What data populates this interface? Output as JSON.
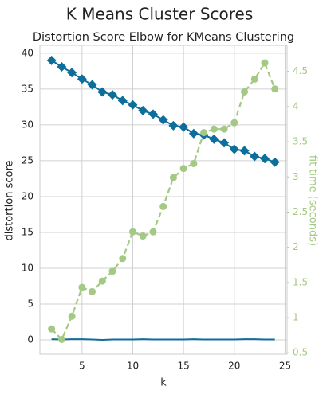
{
  "chart_data": {
    "type": "line",
    "title": "K Means Cluster Scores",
    "subtitle": "Distortion Score Elbow for KMeans Clustering",
    "x_label": "k",
    "y_label": "distortion score",
    "y2_label": "fit time (seconds)",
    "x": [
      2,
      3,
      4,
      5,
      6,
      7,
      8,
      9,
      10,
      11,
      12,
      13,
      14,
      15,
      16,
      17,
      18,
      19,
      20,
      21,
      22,
      23,
      24
    ],
    "series": [
      {
        "color": "#0e6e9b",
        "marker": "diamond",
        "linestyle": "solid",
        "values": [
          39.0,
          38.1,
          37.3,
          36.4,
          35.6,
          34.6,
          34.2,
          33.4,
          32.8,
          32.0,
          31.5,
          30.7,
          29.9,
          29.7,
          28.8,
          28.6,
          28.0,
          27.5,
          26.6,
          26.4,
          25.6,
          25.3,
          24.8
        ]
      },
      {
        "color": "#0e6e9b",
        "marker": "none",
        "linestyle": "solid",
        "values": [
          0.1,
          0.05,
          0.1,
          0.1,
          0.05,
          0.0,
          0.05,
          0.05,
          0.05,
          0.1,
          0.05,
          0.05,
          0.05,
          0.05,
          0.1,
          0.05,
          0.05,
          0.05,
          0.05,
          0.1,
          0.1,
          0.05,
          0.05
        ]
      },
      {
        "color": "#a3c984",
        "marker": "circle",
        "linestyle": "dashed",
        "axis": "y2",
        "values": [
          0.84,
          0.69,
          1.02,
          1.43,
          1.37,
          1.52,
          1.66,
          1.84,
          2.22,
          2.16,
          2.22,
          2.58,
          2.99,
          3.12,
          3.19,
          3.63,
          3.68,
          3.68,
          3.77,
          4.21,
          4.39,
          4.62,
          4.25
        ]
      }
    ],
    "xlim": [
      0.85,
      25.2
    ],
    "xticks": [
      5,
      10,
      15,
      20,
      25
    ],
    "ylim": [
      -2,
      41.1
    ],
    "yticks": [
      0,
      5,
      10,
      15,
      20,
      25,
      30,
      35,
      40
    ],
    "y2lim": [
      0.48,
      4.87
    ],
    "y2ticks": [
      0.5,
      1.0,
      1.5,
      2.0,
      2.5,
      3.0,
      3.5,
      4.0,
      4.5
    ],
    "y2_color": "#a3c984",
    "grid": true
  }
}
